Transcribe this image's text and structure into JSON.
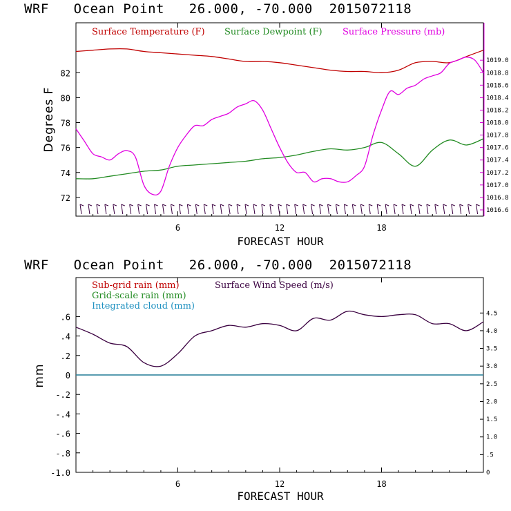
{
  "chart_data": [
    {
      "type": "line",
      "title": "WRF   Ocean Point   26.000, -70.000  2015072118",
      "xlabel": "FORECAST HOUR",
      "ylabel": "Degrees F",
      "xlim": [
        0,
        24
      ],
      "ylim": [
        70.5,
        86
      ],
      "y2lim": [
        1016.5,
        1019.6
      ],
      "x_ticks": [
        "6",
        "12",
        "18"
      ],
      "y_ticks": [
        "72",
        "74",
        "76",
        "78",
        "80",
        "82"
      ],
      "y2_ticks": [
        "1016.6",
        "1016.8",
        "1017.0",
        "1017.2",
        "1017.4",
        "1017.6",
        "1017.8",
        "1018.0",
        "1018.2",
        "1018.4",
        "1018.6",
        "1018.8",
        "1019.0"
      ],
      "series": [
        {
          "name": "Surface Temperature (F)",
          "color": "#c00000",
          "axis": "left",
          "x": [
            0,
            1,
            2,
            3,
            4,
            5,
            6,
            7,
            8,
            9,
            10,
            11,
            12,
            13,
            14,
            15,
            16,
            17,
            18,
            19,
            20,
            21,
            22,
            23,
            24
          ],
          "values": [
            83.7,
            83.8,
            83.9,
            83.9,
            83.7,
            83.6,
            83.5,
            83.4,
            83.3,
            83.1,
            82.9,
            82.9,
            82.8,
            82.6,
            82.4,
            82.2,
            82.1,
            82.1,
            82.0,
            82.2,
            82.8,
            82.9,
            82.8,
            83.3,
            83.8
          ]
        },
        {
          "name": "Surface Dewpoint (F)",
          "color": "#228b22",
          "axis": "left",
          "x": [
            0,
            1,
            2,
            3,
            4,
            5,
            6,
            7,
            8,
            9,
            10,
            11,
            12,
            13,
            14,
            15,
            16,
            17,
            18,
            19,
            20,
            21,
            22,
            23,
            24
          ],
          "values": [
            73.5,
            73.5,
            73.7,
            73.9,
            74.1,
            74.2,
            74.5,
            74.6,
            74.7,
            74.8,
            74.9,
            75.1,
            75.2,
            75.4,
            75.7,
            75.9,
            75.8,
            76.0,
            76.4,
            75.5,
            74.5,
            75.8,
            76.6,
            76.2,
            76.7
          ]
        },
        {
          "name": "Surface Pressure (mb)",
          "color": "#e000e0",
          "axis": "right",
          "x": [
            0,
            0.5,
            1,
            1.5,
            2,
            2.5,
            3,
            3.5,
            4,
            4.5,
            5,
            5.5,
            6,
            6.5,
            7,
            7.5,
            8,
            8.5,
            9,
            9.5,
            10,
            10.5,
            11,
            11.5,
            12,
            12.5,
            13,
            13.5,
            14,
            14.5,
            15,
            15.5,
            16,
            16.5,
            17,
            17.5,
            18,
            18.5,
            19,
            19.5,
            20,
            20.5,
            21,
            21.5,
            22,
            22.5,
            23,
            23.5,
            24
          ],
          "values": [
            1017.9,
            1017.7,
            1017.5,
            1017.45,
            1017.4,
            1017.5,
            1017.55,
            1017.45,
            1017.0,
            1016.85,
            1016.9,
            1017.3,
            1017.6,
            1017.8,
            1017.95,
            1017.95,
            1018.05,
            1018.1,
            1018.15,
            1018.25,
            1018.3,
            1018.35,
            1018.2,
            1017.9,
            1017.6,
            1017.35,
            1017.2,
            1017.2,
            1017.05,
            1017.1,
            1017.1,
            1017.05,
            1017.05,
            1017.15,
            1017.3,
            1017.8,
            1018.2,
            1018.5,
            1018.45,
            1018.55,
            1018.6,
            1018.7,
            1018.75,
            1018.8,
            1018.95,
            1019.0,
            1019.05,
            1019.0,
            1018.8
          ]
        }
      ]
    },
    {
      "type": "line",
      "title": "WRF   Ocean Point   26.000, -70.000  2015072118",
      "xlabel": "FORECAST HOUR",
      "ylabel": "mm",
      "xlim": [
        0,
        24
      ],
      "ylim": [
        -1.0,
        1.0
      ],
      "y2lim": [
        0,
        5.5
      ],
      "x_ticks": [
        "6",
        "12",
        "18"
      ],
      "y_ticks": [
        ".6",
        ".4",
        ".2",
        "0",
        "-.2",
        "-.4",
        "-.6",
        "-.8",
        "-1.0"
      ],
      "y2_ticks": [
        "4.5",
        "4.0",
        "3.5",
        "3.0",
        "2.5",
        "2.0",
        "1.5",
        "1.0",
        ".5",
        "0"
      ],
      "series": [
        {
          "name": "Sub-grid rain (mm)",
          "color": "#c00000",
          "axis": "left",
          "x": [
            0,
            24
          ],
          "values": [
            0,
            0
          ]
        },
        {
          "name": "Grid-scale rain (mm)",
          "color": "#228b22",
          "axis": "left",
          "x": [
            0,
            24
          ],
          "values": [
            0,
            0
          ]
        },
        {
          "name": "Integrated cloud (mm)",
          "color": "#1e90c0",
          "axis": "left",
          "x": [
            0,
            24
          ],
          "values": [
            0,
            0
          ]
        },
        {
          "name": "Surface Wind Speed (m/s)",
          "color": "#3a0040",
          "axis": "right",
          "x": [
            0,
            1,
            2,
            3,
            4,
            5,
            6,
            7,
            8,
            9,
            10,
            11,
            12,
            13,
            14,
            15,
            16,
            17,
            18,
            19,
            20,
            21,
            22,
            23,
            24
          ],
          "values": [
            4.1,
            3.9,
            3.65,
            3.55,
            3.1,
            3.0,
            3.35,
            3.85,
            4.0,
            4.15,
            4.1,
            4.2,
            4.15,
            4.0,
            4.35,
            4.3,
            4.55,
            4.45,
            4.4,
            4.45,
            4.45,
            4.2,
            4.2,
            4.0,
            4.25
          ]
        }
      ]
    }
  ]
}
